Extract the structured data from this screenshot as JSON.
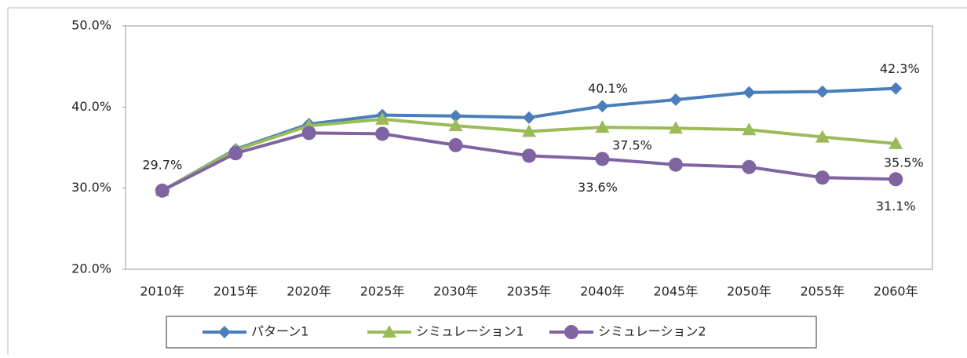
{
  "chart_data": {
    "type": "line",
    "categories": [
      "2010年",
      "2015年",
      "2020年",
      "2025年",
      "2030年",
      "2035年",
      "2040年",
      "2045年",
      "2050年",
      "2055年",
      "2060年"
    ],
    "ylim": [
      20,
      50
    ],
    "yticks": [
      {
        "value": 20,
        "label": "20.0%"
      },
      {
        "value": 30,
        "label": "30.0%"
      },
      {
        "value": 40,
        "label": "40.0%"
      },
      {
        "value": 50,
        "label": "50.0%"
      }
    ],
    "grid": false,
    "legend": "bottom",
    "series": [
      {
        "name": "パターン1",
        "color": "#4a7ebb",
        "marker": "diamond",
        "values": [
          29.7,
          34.8,
          37.9,
          39.0,
          38.9,
          38.7,
          40.1,
          40.9,
          41.8,
          41.9,
          42.3
        ],
        "value_labels": [
          "29.7%",
          null,
          null,
          null,
          null,
          null,
          "40.1%",
          null,
          null,
          null,
          "42.3%"
        ]
      },
      {
        "name": "シミュレーション1",
        "color": "#9bbb59",
        "marker": "triangle",
        "values": [
          29.7,
          34.7,
          37.7,
          38.5,
          37.7,
          37.0,
          37.5,
          37.4,
          37.2,
          36.3,
          35.5
        ],
        "value_labels": [
          null,
          null,
          null,
          null,
          null,
          null,
          "37.5%",
          null,
          null,
          null,
          "35.5%"
        ]
      },
      {
        "name": "シミュレーション2",
        "color": "#8064a2",
        "marker": "circle",
        "values": [
          29.7,
          34.3,
          36.8,
          36.7,
          35.3,
          34.0,
          33.6,
          32.9,
          32.6,
          31.3,
          31.1
        ],
        "value_labels": [
          null,
          null,
          null,
          null,
          null,
          null,
          "33.6%",
          null,
          null,
          null,
          "31.1%"
        ]
      }
    ]
  }
}
